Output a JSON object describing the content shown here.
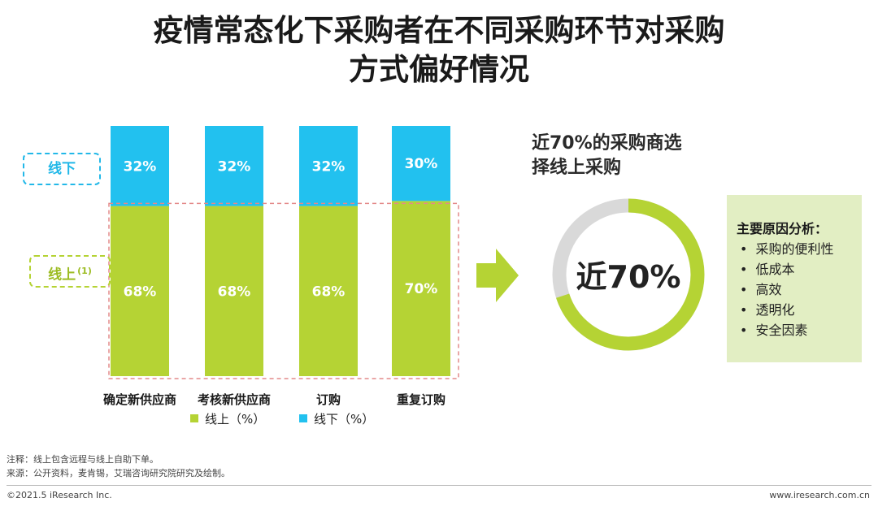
{
  "title": {
    "line1": "疫情常态化下采购者在不同采购环节对采购",
    "line2": "方式偏好情况"
  },
  "tags": {
    "offline": "线下",
    "online": "线上",
    "online_note": "(1)"
  },
  "chart_data": {
    "type": "bar",
    "stacked": true,
    "categories": [
      "确定新供应商",
      "考核新供应商",
      "订购",
      "重复订购"
    ],
    "series": [
      {
        "name": "线上（%）",
        "values": [
          68,
          68,
          68,
          70
        ],
        "labels": [
          "68%",
          "68%",
          "68%",
          "70%"
        ],
        "color": "#b5d334"
      },
      {
        "name": "线下（%）",
        "values": [
          32,
          32,
          32,
          30
        ],
        "labels": [
          "32%",
          "32%",
          "32%",
          "30%"
        ],
        "color": "#22c1ef"
      }
    ],
    "ylim": [
      0,
      100
    ],
    "legend": "bottom"
  },
  "legend": {
    "online": "线上（%）",
    "offline": "线下（%）"
  },
  "headline": {
    "line1": "近70%的采购商选",
    "line2": "择线上采购"
  },
  "donut": {
    "label": "近70%",
    "share_online": 70,
    "color_online": "#b5d334",
    "color_rest": "#d9d9d9"
  },
  "reasons": {
    "title": "主要原因分析：",
    "items": [
      "采购的便利性",
      "低成本",
      "高效",
      "透明化",
      "安全因素"
    ]
  },
  "notes": {
    "note": "注释：线上包含远程与线上自助下单。",
    "source": "来源：公开资料，麦肯锡，艾瑞咨询研究院研究及绘制。"
  },
  "footer": {
    "copyright": "©2021.5 iResearch Inc.",
    "website": "www.iresearch.com.cn"
  },
  "colors": {
    "online": "#b5d334",
    "offline": "#22c1ef",
    "highlight_box": "#e48a8a",
    "reason_box": "#e2eec3"
  }
}
